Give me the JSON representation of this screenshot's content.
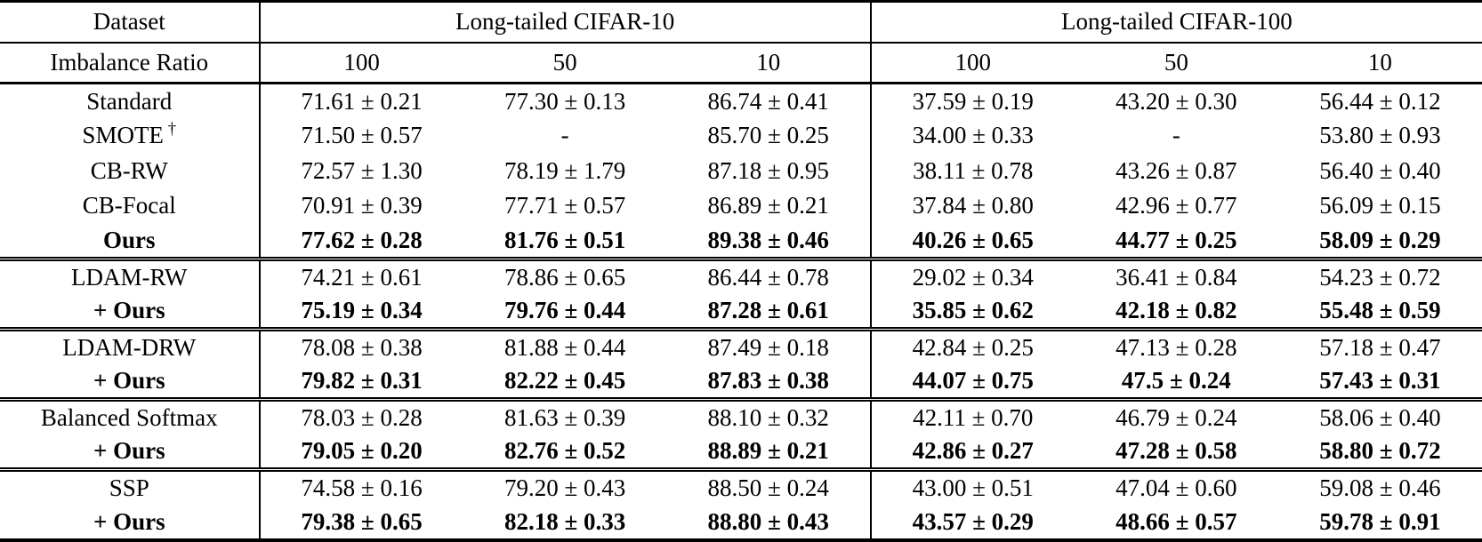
{
  "table": {
    "header": {
      "dataset_label": "Dataset",
      "imbalance_label": "Imbalance Ratio",
      "datasets": [
        {
          "name": "Long-tailed CIFAR-10",
          "ratios": [
            "100",
            "50",
            "10"
          ]
        },
        {
          "name": "Long-tailed CIFAR-100",
          "ratios": [
            "100",
            "50",
            "10"
          ]
        }
      ]
    },
    "groups": [
      {
        "rows": [
          {
            "method": "Standard",
            "bold": false,
            "values": [
              "71.61 ± 0.21",
              "77.30 ± 0.13",
              "86.74 ± 0.41",
              "37.59 ± 0.19",
              "43.20 ± 0.30",
              "56.44 ± 0.12"
            ]
          },
          {
            "method": "SMOTE",
            "method_sup": "†",
            "bold": false,
            "values": [
              "71.50 ± 0.57",
              "-",
              "85.70 ± 0.25",
              "34.00 ± 0.33",
              "-",
              "53.80 ± 0.93"
            ]
          },
          {
            "method": "CB-RW",
            "bold": false,
            "values": [
              "72.57 ± 1.30",
              "78.19 ± 1.79",
              "87.18 ± 0.95",
              "38.11 ± 0.78",
              "43.26 ± 0.87",
              "56.40 ± 0.40"
            ]
          },
          {
            "method": "CB-Focal",
            "bold": false,
            "values": [
              "70.91 ± 0.39",
              "77.71 ± 0.57",
              "86.89 ± 0.21",
              "37.84 ± 0.80",
              "42.96 ± 0.77",
              "56.09 ± 0.15"
            ]
          },
          {
            "method": "Ours",
            "bold": true,
            "values": [
              "77.62 ± 0.28",
              "81.76 ± 0.51",
              "89.38 ± 0.46",
              "40.26 ± 0.65",
              "44.77 ± 0.25",
              "58.09 ± 0.29"
            ]
          }
        ]
      },
      {
        "rows": [
          {
            "method": "LDAM-RW",
            "bold": false,
            "values": [
              "74.21 ± 0.61",
              "78.86 ± 0.65",
              "86.44 ± 0.78",
              "29.02 ± 0.34",
              "36.41 ± 0.84",
              "54.23 ± 0.72"
            ]
          },
          {
            "method": "+ Ours",
            "bold": true,
            "values": [
              "75.19 ± 0.34",
              "79.76 ± 0.44",
              "87.28 ± 0.61",
              "35.85 ± 0.62",
              "42.18 ± 0.82",
              "55.48 ± 0.59"
            ]
          }
        ]
      },
      {
        "rows": [
          {
            "method": "LDAM-DRW",
            "bold": false,
            "values": [
              "78.08 ± 0.38",
              "81.88 ± 0.44",
              "87.49 ± 0.18",
              "42.84 ± 0.25",
              "47.13 ± 0.28",
              "57.18 ± 0.47"
            ]
          },
          {
            "method": "+ Ours",
            "bold": true,
            "values": [
              "79.82 ± 0.31",
              "82.22 ± 0.45",
              "87.83 ± 0.38",
              "44.07 ± 0.75",
              "47.5 ± 0.24",
              "57.43 ± 0.31"
            ]
          }
        ]
      },
      {
        "rows": [
          {
            "method": "Balanced Softmax",
            "bold": false,
            "values": [
              "78.03 ± 0.28",
              "81.63 ± 0.39",
              "88.10 ± 0.32",
              "42.11 ± 0.70",
              "46.79 ± 0.24",
              "58.06 ± 0.40"
            ]
          },
          {
            "method": "+ Ours",
            "bold": true,
            "values": [
              "79.05 ± 0.20",
              "82.76 ± 0.52",
              "88.89 ± 0.21",
              "42.86 ± 0.27",
              "47.28 ± 0.58",
              "58.80 ± 0.72"
            ]
          }
        ]
      },
      {
        "rows": [
          {
            "method": "SSP",
            "bold": false,
            "values": [
              "74.58 ± 0.16",
              "79.20 ± 0.43",
              "88.50 ± 0.24",
              "43.00 ± 0.51",
              "47.04 ± 0.60",
              "59.08 ± 0.46"
            ]
          },
          {
            "method": "+ Ours",
            "bold": true,
            "values": [
              "79.38 ± 0.65",
              "82.18 ± 0.33",
              "88.80 ± 0.43",
              "43.57 ± 0.29",
              "48.66 ± 0.57",
              "59.78 ± 0.91"
            ]
          }
        ]
      }
    ]
  }
}
